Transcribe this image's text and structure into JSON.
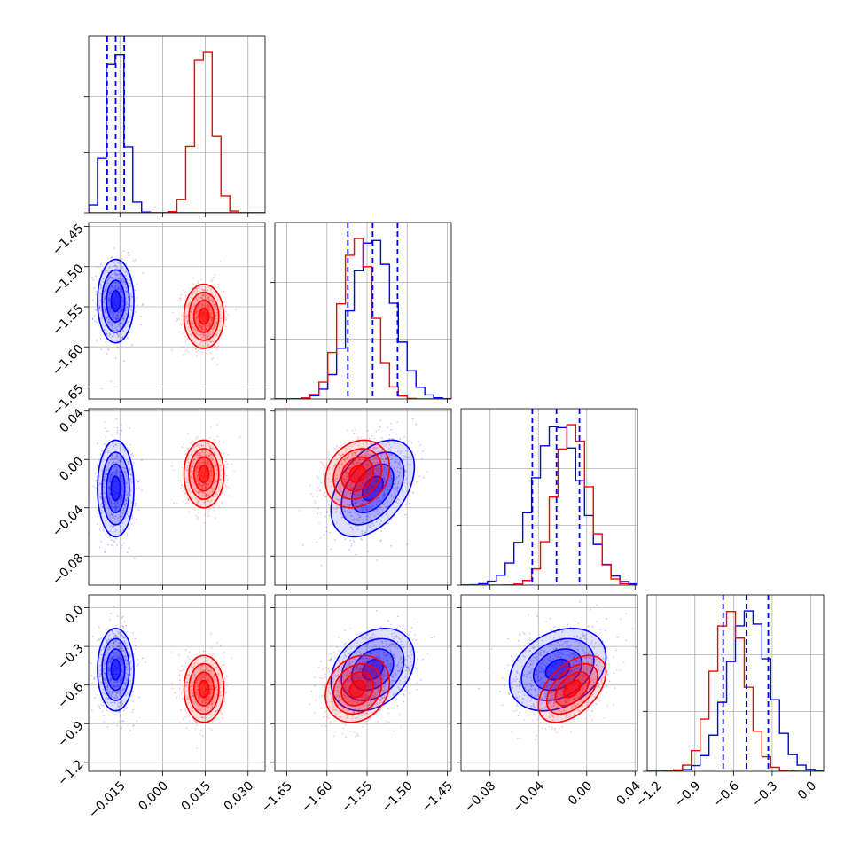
{
  "chart_data": {
    "type": "corner",
    "grid": true,
    "parameters": [
      {
        "range": [
          -0.026,
          0.036
        ],
        "ticks": [
          -0.015,
          0.0,
          0.015,
          0.03
        ],
        "tick_labels": [
          "−0.015",
          "0.000",
          "0.015",
          "0.030"
        ]
      },
      {
        "range": [
          -1.665,
          -1.445
        ],
        "ticks": [
          -1.65,
          -1.6,
          -1.55,
          -1.5,
          -1.45
        ],
        "tick_labels": [
          "−1.65",
          "−1.60",
          "−1.55",
          "−1.50",
          "−1.45"
        ]
      },
      {
        "range": [
          -0.104,
          0.042
        ],
        "ticks": [
          -0.08,
          -0.04,
          0.0,
          0.04
        ],
        "tick_labels": [
          "−0.08",
          "−0.04",
          "0.00",
          "0.04"
        ]
      },
      {
        "range": [
          -1.27,
          0.1
        ],
        "ticks": [
          -1.2,
          -0.9,
          -0.6,
          -0.3,
          0.0
        ],
        "tick_labels": [
          "−1.2",
          "−0.9",
          "−0.6",
          "−0.3",
          "0.0"
        ]
      }
    ],
    "series": [
      {
        "color": "#0000ff",
        "mean": [
          -0.0165,
          -1.543,
          -0.024,
          -0.48
        ],
        "sd": [
          0.0032,
          0.026,
          0.02,
          0.16
        ],
        "quantiles": [
          [
            -0.0195,
            -0.0165,
            -0.0135
          ],
          [
            -1.574,
            -1.543,
            -1.512
          ],
          [
            -0.045,
            -0.025,
            -0.006
          ],
          [
            -0.68,
            -0.5,
            -0.33
          ]
        ]
      },
      {
        "color": "#ff0000",
        "mean": [
          0.0145,
          -1.562,
          -0.012,
          -0.63
        ],
        "sd": [
          0.0035,
          0.02,
          0.014,
          0.13
        ]
      }
    ],
    "correlations": {
      "blue": {
        "1-2": 0.45,
        "1-3": 0.3,
        "2-3": 0.3
      },
      "red": {
        "1-2": 0.2,
        "1-3": 0.2,
        "2-3": 0.5
      }
    }
  }
}
